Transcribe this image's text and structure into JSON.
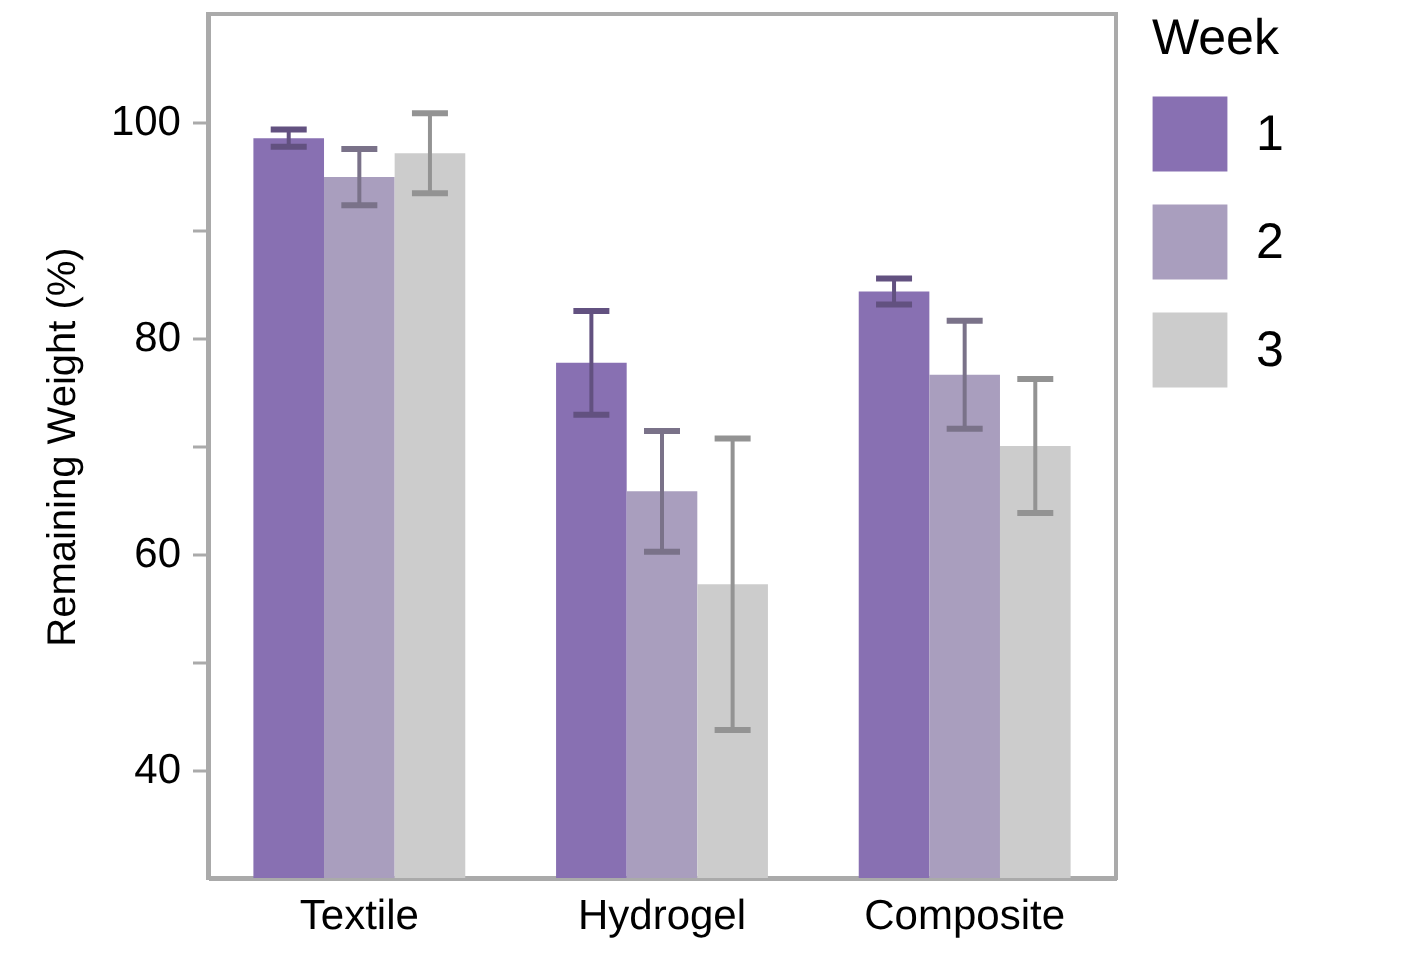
{
  "chart_data": {
    "type": "bar",
    "ylabel": "Remaining Weight (%)",
    "legend_title": "Week",
    "legend": "top right",
    "categories": [
      "Textile",
      "Hydrogel",
      "Composite"
    ],
    "ylim": [
      30,
      110
    ],
    "yticks": [
      40,
      {
        "value": 50,
        "label": null
      },
      60,
      {
        "value": 70,
        "label": null
      },
      80,
      {
        "value": 90,
        "label": null
      },
      100
    ],
    "grid": false,
    "series": [
      {
        "name": "1",
        "color": "#8870b2",
        "values": [
          98.5,
          77.7,
          84.3
        ],
        "errors": [
          0.8,
          4.8,
          1.2
        ]
      },
      {
        "name": "2",
        "color": "#a99ebe",
        "values": [
          94.9,
          65.8,
          76.6
        ],
        "errors": [
          2.6,
          5.6,
          5.0
        ]
      },
      {
        "name": "3",
        "color": "#cccccc",
        "values": [
          97.1,
          57.2,
          70.0
        ],
        "errors": [
          3.7,
          13.5,
          6.2
        ]
      }
    ]
  }
}
